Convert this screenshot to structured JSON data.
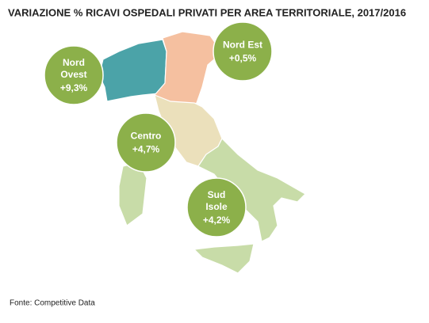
{
  "title": "VARIAZIONE % RICAVI OSPEDALI PRIVATI PER AREA TERRITORIALE, 2017/2016",
  "regions": [
    {
      "name": [
        "Nord",
        "Ovest"
      ],
      "value": "+9,3%"
    },
    {
      "name": [
        "Nord Est"
      ],
      "value": "+0,5%"
    },
    {
      "name": [
        "Centro"
      ],
      "value": "+4,7%"
    },
    {
      "name": [
        "Sud",
        "Isole"
      ],
      "value": "+4,2%"
    }
  ],
  "source": "Fonte: Competitive Data"
}
